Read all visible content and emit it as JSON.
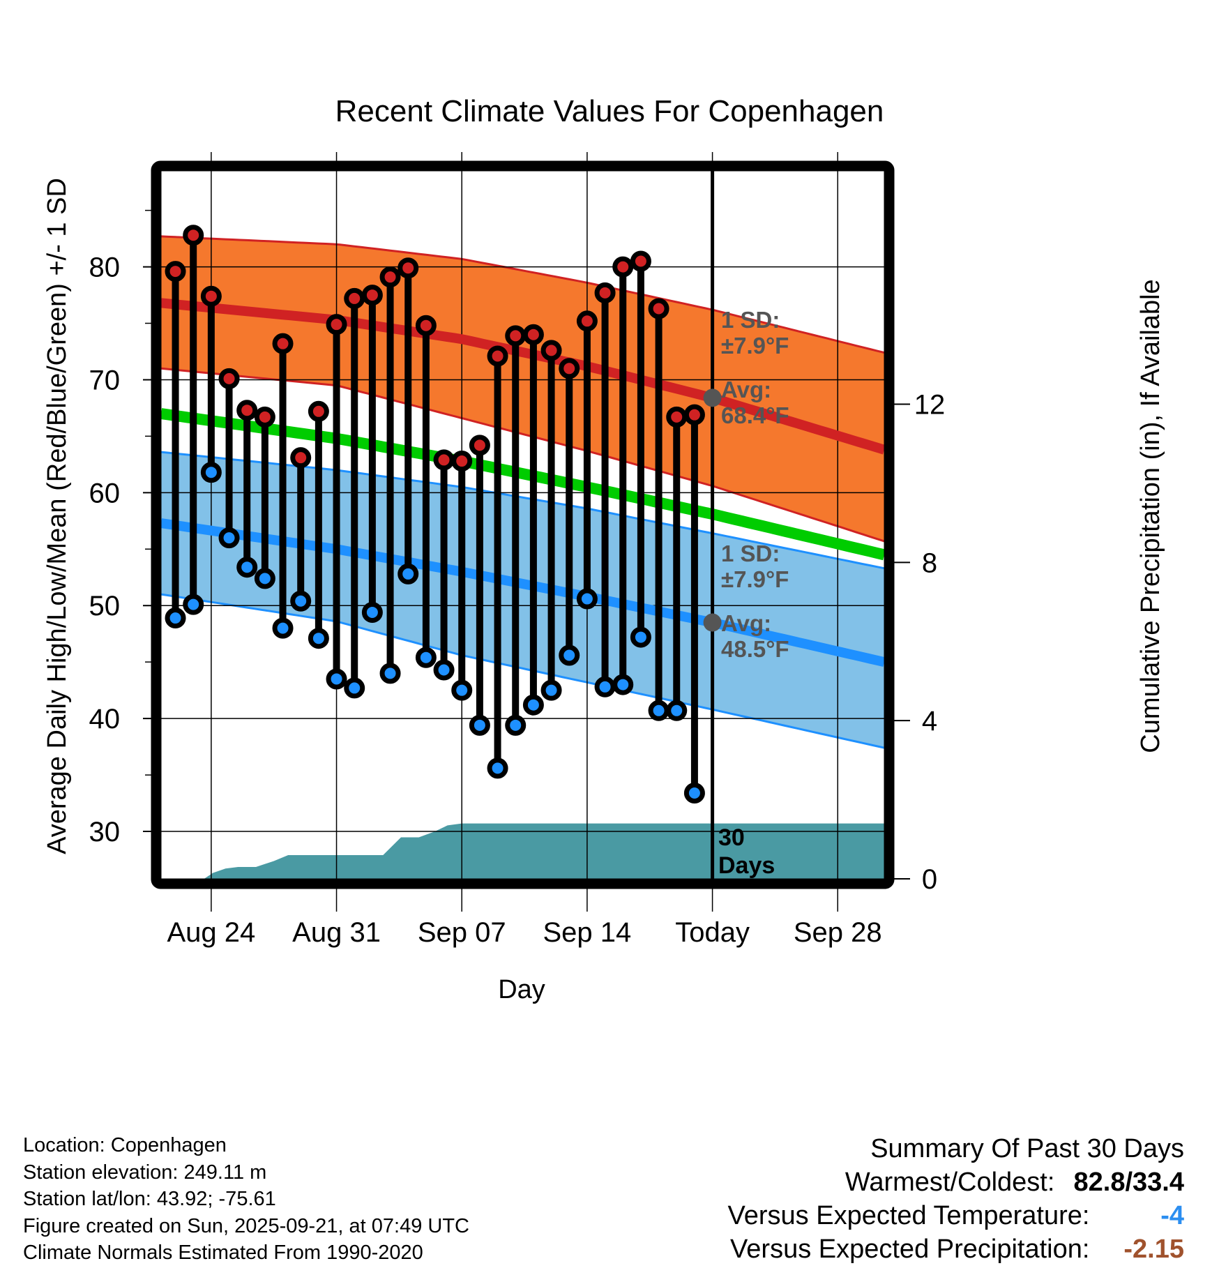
{
  "chart_data": {
    "type": "line",
    "title": "Recent Climate Values For Copenhagen",
    "xlabel": "Day",
    "ylabel": "Average Daily High/Low/Mean (Red/Blue/Green) +/- 1 SD",
    "y2label": "Cumulative Precipitation (in), If Available",
    "ylim": [
      25.8,
      88.5
    ],
    "y_ticks": [
      30,
      40,
      50,
      60,
      70,
      80
    ],
    "y_minor_ticks": [
      35,
      45,
      55,
      65,
      75,
      85
    ],
    "y2lim": [
      0,
      17.9
    ],
    "y2_ticks": [
      0,
      4,
      8,
      12
    ],
    "x_range_days": [
      -30.8,
      9.6
    ],
    "x_ticks": [
      {
        "day": -28,
        "label": "Aug 24"
      },
      {
        "day": -21,
        "label": "Aug 31"
      },
      {
        "day": -14,
        "label": "Sep 07"
      },
      {
        "day": -7,
        "label": "Sep 14"
      },
      {
        "day": 0,
        "label": "Today"
      },
      {
        "day": 7,
        "label": "Sep 28"
      }
    ],
    "grid": true,
    "days": [
      -30,
      -29,
      -28,
      -27,
      -26,
      -25,
      -24,
      -23,
      -22,
      -21,
      -20,
      -19,
      -18,
      -17,
      -16,
      -15,
      -14,
      -13,
      -12,
      -11,
      -10,
      -9,
      -8,
      -7,
      -6,
      -5,
      -4,
      -3,
      -2,
      -1
    ],
    "series": [
      {
        "name": "Daily High",
        "color": "#d02223",
        "values": [
          79.6,
          82.8,
          77.4,
          70.1,
          67.3,
          66.7,
          73.2,
          63.1,
          67.2,
          74.9,
          77.2,
          77.5,
          79.1,
          79.9,
          74.8,
          62.9,
          62.8,
          64.2,
          72.1,
          73.9,
          74.0,
          72.6,
          71.0,
          75.2,
          77.7,
          80.0,
          80.5,
          76.3,
          66.7,
          66.9
        ]
      },
      {
        "name": "Daily Low",
        "color": "#1e90ff",
        "values": [
          48.9,
          50.1,
          61.8,
          56.0,
          53.4,
          52.4,
          48.0,
          50.4,
          47.1,
          43.5,
          42.7,
          49.4,
          44.0,
          52.8,
          45.4,
          44.3,
          42.5,
          39.4,
          35.6,
          39.4,
          41.2,
          42.5,
          45.6,
          50.6,
          42.8,
          43.0,
          47.2,
          40.7,
          40.7,
          33.4
        ]
      }
    ],
    "normals": {
      "x_days": [
        -30.8,
        -21,
        -14,
        -7,
        0,
        9.6
      ],
      "avg_high": {
        "color": "#d02223",
        "values": [
          76.8,
          75.3,
          73.6,
          71.2,
          68.4,
          63.8
        ]
      },
      "high_upper_sd": {
        "values": [
          82.7,
          82.0,
          80.7,
          78.6,
          76.2,
          72.4
        ]
      },
      "high_lower_sd": {
        "values": [
          71.0,
          69.5,
          66.6,
          63.7,
          60.6,
          55.7
        ]
      },
      "avg_mean": {
        "color": "#00cc00",
        "values": [
          67.0,
          64.8,
          62.8,
          60.5,
          58.1,
          54.5
        ]
      },
      "avg_low": {
        "color": "#1e90ff",
        "values": [
          57.3,
          55.0,
          53.0,
          50.8,
          48.5,
          45.0
        ]
      },
      "low_upper_sd": {
        "values": [
          63.6,
          62.0,
          60.5,
          58.6,
          56.4,
          53.3
        ]
      },
      "low_lower_sd": {
        "values": [
          51.0,
          48.6,
          45.6,
          43.2,
          40.8,
          37.4
        ]
      },
      "high_band_color": "#f5782d",
      "low_band_color": "#82c1e8"
    },
    "precipitation": {
      "color": "#4a9aa3",
      "x_days": [
        -28.4,
        -27.9,
        -27.2,
        -26.5,
        -25.5,
        -24.5,
        -23.7,
        -22.5,
        -21,
        -19.2,
        -18.4,
        -17.4,
        -16.4,
        -15.5,
        -14.8,
        -14,
        9.6
      ],
      "values": [
        0,
        0.15,
        0.26,
        0.3,
        0.3,
        0.45,
        0.6,
        0.6,
        0.6,
        0.6,
        0.6,
        1.05,
        1.05,
        1.2,
        1.35,
        1.4,
        1.4
      ]
    },
    "annotations": {
      "high_sd": [
        "1 SD:",
        "±7.9°F"
      ],
      "high_avg": [
        "Avg:",
        "68.4°F"
      ],
      "high_avg_value": 68.4,
      "low_sd": [
        "1 SD:",
        "±7.9°F"
      ],
      "low_avg": [
        "Avg:",
        "48.5°F"
      ],
      "low_avg_value": 48.5,
      "days_label": [
        "30",
        "Days"
      ]
    }
  },
  "footer": {
    "location": "Location: Copenhagen",
    "elevation": "Station elevation: 249.11 m",
    "latlon": "Station lat/lon: 43.92; -75.61",
    "created": "Figure created on Sun, 2025-09-21, at 07:49 UTC",
    "normals": "Climate Normals Estimated From 1990-2020"
  },
  "summary": {
    "title": "Summary Of Past 30 Days",
    "warm_cold_label": "Warmest/Coldest:",
    "warm_cold_value": "82.8/33.4",
    "temp_label": "Versus Expected Temperature:",
    "temp_value": "-4",
    "temp_color": "#2b8ef0",
    "precip_label": "Versus Expected Precipitation:",
    "precip_value": "-2.15",
    "precip_color": "#a0522d"
  }
}
